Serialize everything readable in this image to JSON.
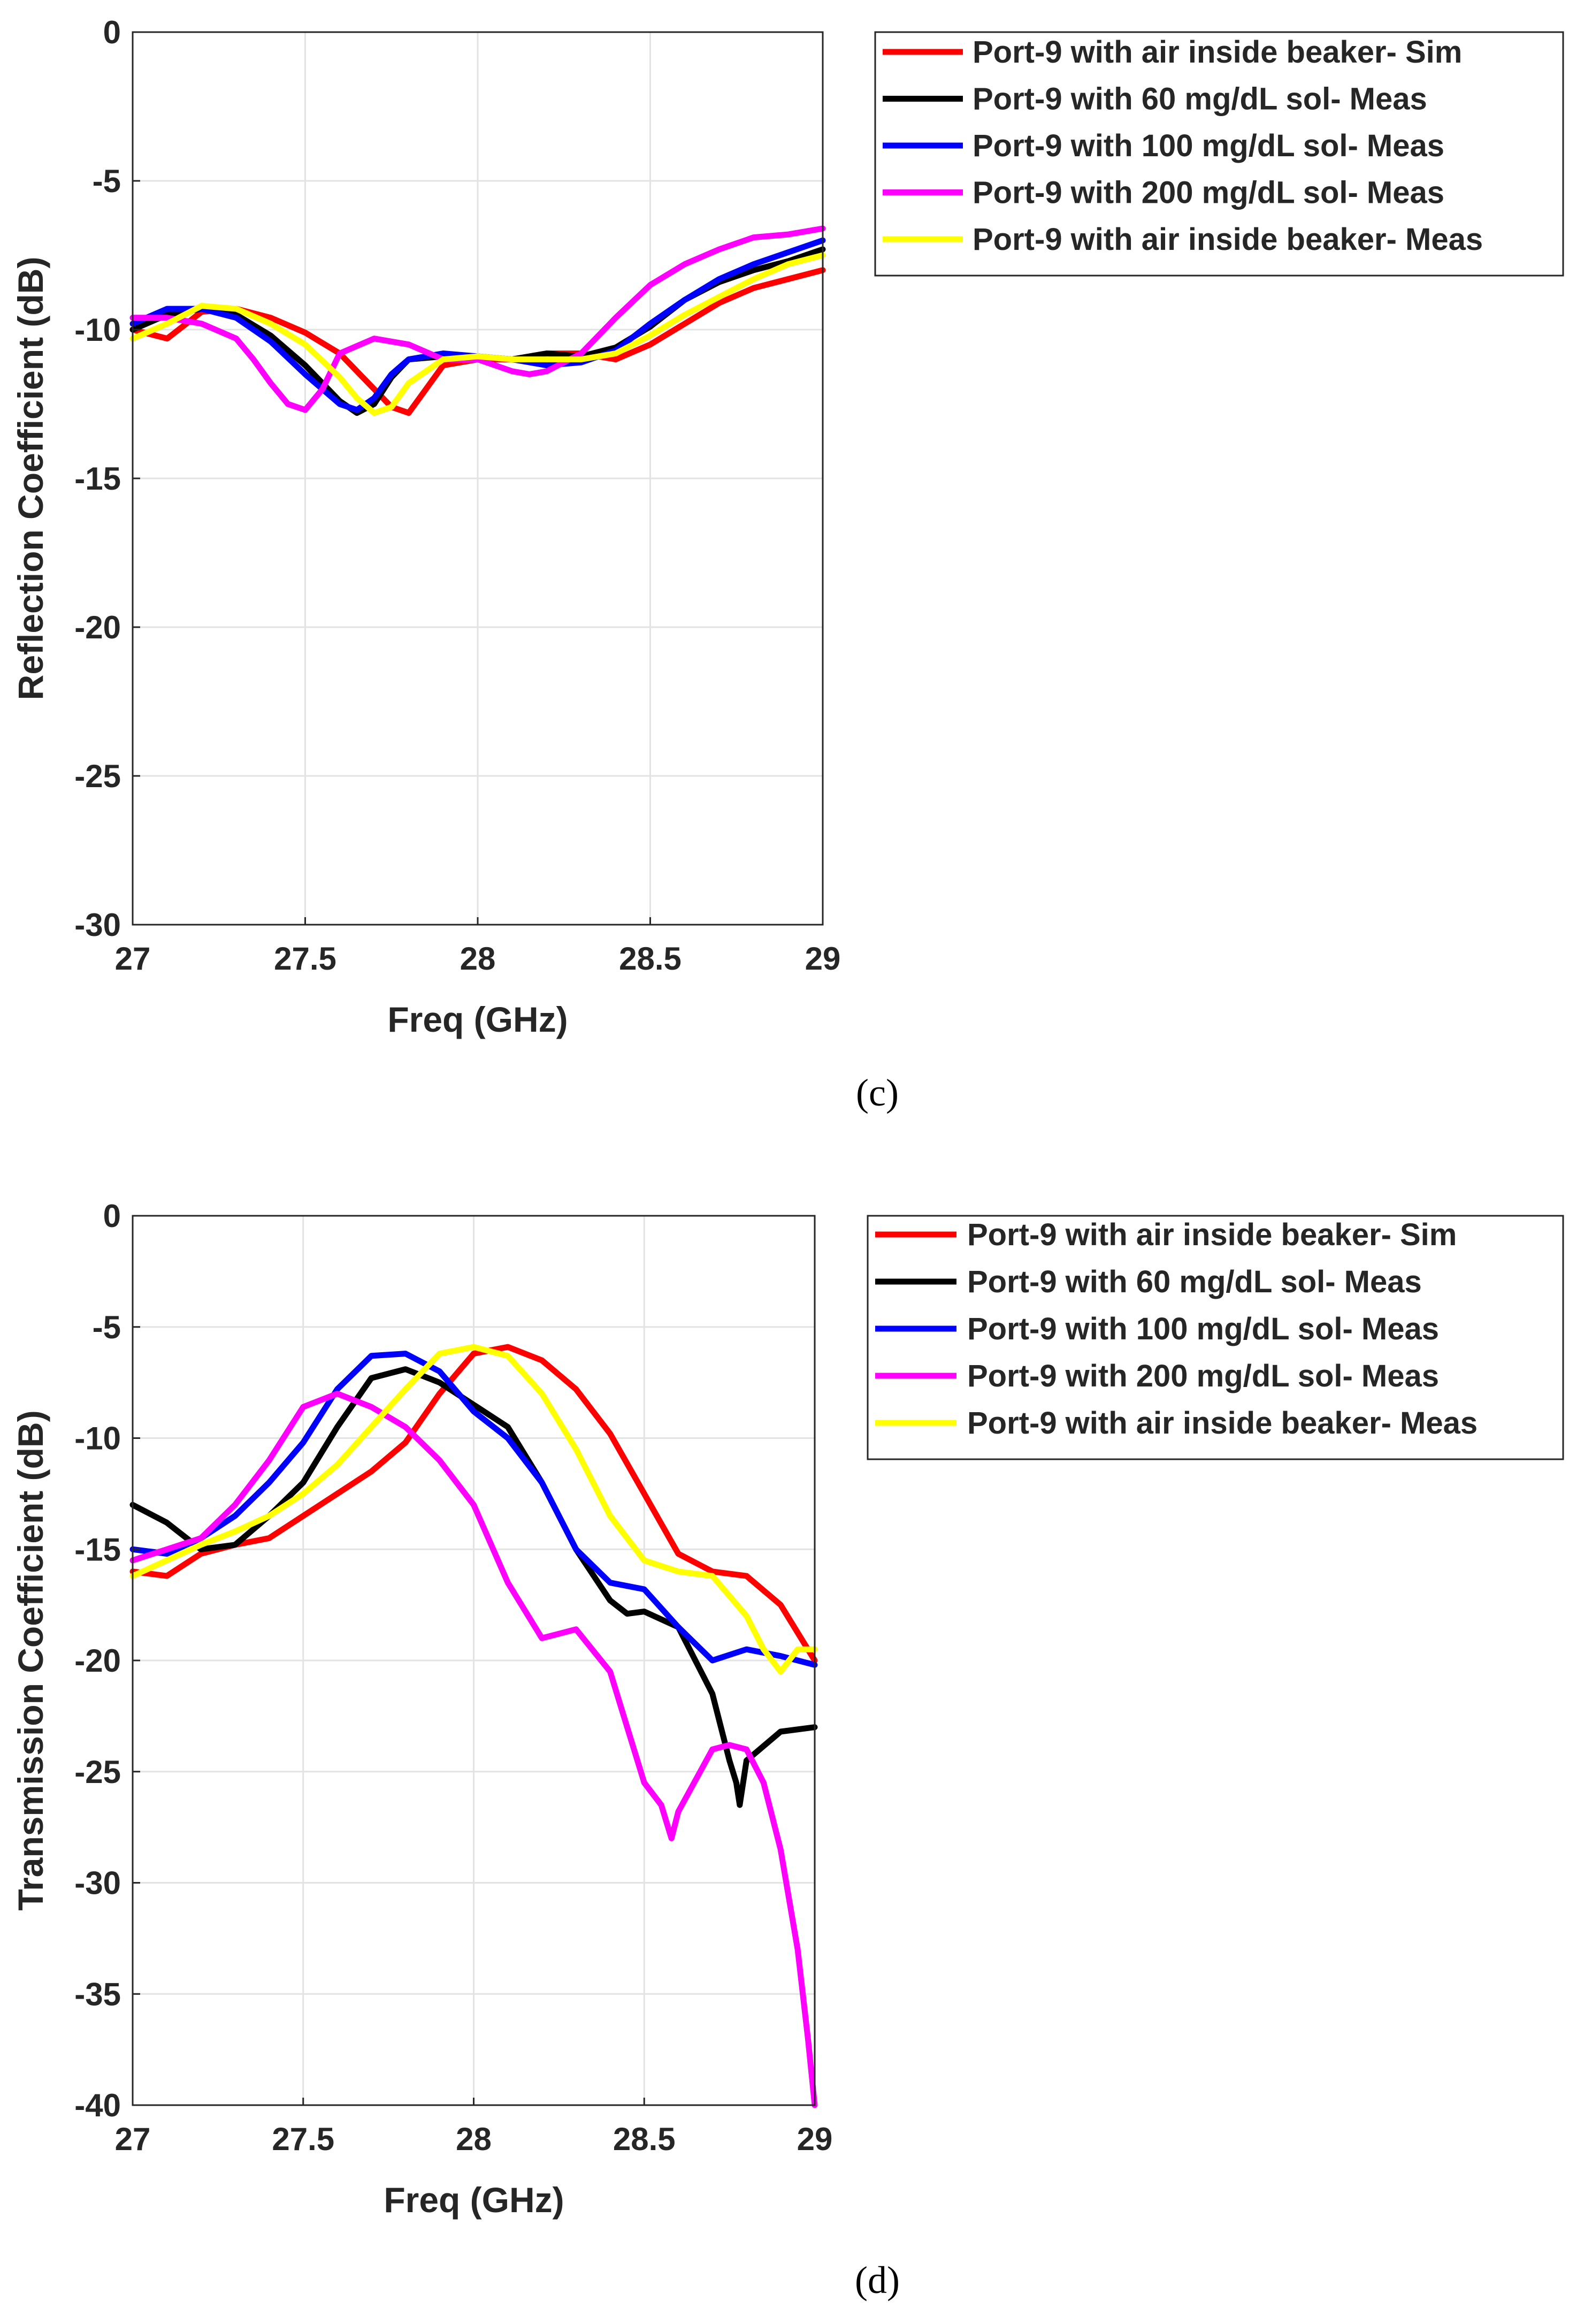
{
  "series_colors": {
    "sim_air": "#ff0000",
    "meas_60": "#000000",
    "meas_100": "#0000ff",
    "meas_200": "#ff00ff",
    "meas_air": "#ffff00"
  },
  "chart_data": [
    {
      "type": "line",
      "panel_label": "(c)",
      "title": "",
      "xlabel": "Freq (GHz)",
      "ylabel": "Reflection Coefficient (dB)",
      "xlim": [
        27,
        29
      ],
      "ylim": [
        -30,
        0
      ],
      "xticks": [
        27,
        27.5,
        28,
        28.5,
        29
      ],
      "xtick_labels": [
        "27",
        "27.5",
        "28",
        "28.5",
        "29"
      ],
      "yticks": [
        0,
        -5,
        -10,
        -15,
        -20,
        -25,
        -30
      ],
      "ytick_labels": [
        "0",
        "-5",
        "-10",
        "-15",
        "-20",
        "-25",
        "-30"
      ],
      "grid": true,
      "legend_position": "outside-top-right",
      "series": [
        {
          "key": "sim_air",
          "name": "Port-9 with air inside beaker- Sim",
          "x": [
            27,
            27.1,
            27.2,
            27.3,
            27.4,
            27.5,
            27.6,
            27.7,
            27.75,
            27.8,
            27.85,
            27.9,
            28,
            28.1,
            28.2,
            28.3,
            28.4,
            28.5,
            28.6,
            28.7,
            28.8,
            28.9,
            29
          ],
          "y": [
            -10.0,
            -10.3,
            -9.4,
            -9.3,
            -9.6,
            -10.1,
            -10.8,
            -12.0,
            -12.6,
            -12.8,
            -12.0,
            -11.2,
            -11.0,
            -11.0,
            -10.8,
            -10.8,
            -11.0,
            -10.5,
            -9.8,
            -9.1,
            -8.6,
            -8.3,
            -8.0
          ]
        },
        {
          "key": "meas_60",
          "name": "Port-9 with 60 mg/dL sol- Meas",
          "x": [
            27,
            27.1,
            27.2,
            27.3,
            27.4,
            27.5,
            27.6,
            27.65,
            27.7,
            27.75,
            27.8,
            27.9,
            28,
            28.1,
            28.2,
            28.3,
            28.4,
            28.5,
            28.6,
            28.7,
            28.8,
            28.9,
            29
          ],
          "y": [
            -10.0,
            -9.5,
            -9.3,
            -9.5,
            -10.2,
            -11.2,
            -12.4,
            -12.8,
            -12.5,
            -11.6,
            -11.0,
            -10.9,
            -10.9,
            -11.0,
            -10.8,
            -10.9,
            -10.6,
            -9.9,
            -9.0,
            -8.4,
            -8.0,
            -7.7,
            -7.3
          ]
        },
        {
          "key": "meas_100",
          "name": "Port-9 with 100 mg/dL sol- Meas",
          "x": [
            27,
            27.1,
            27.2,
            27.3,
            27.4,
            27.5,
            27.6,
            27.65,
            27.7,
            27.75,
            27.8,
            27.9,
            28,
            28.1,
            28.2,
            28.3,
            28.4,
            28.5,
            28.6,
            28.7,
            28.8,
            28.9,
            29
          ],
          "y": [
            -9.8,
            -9.3,
            -9.3,
            -9.6,
            -10.4,
            -11.5,
            -12.5,
            -12.7,
            -12.3,
            -11.5,
            -11.0,
            -10.8,
            -10.9,
            -11.0,
            -11.2,
            -11.1,
            -10.7,
            -9.8,
            -9.0,
            -8.3,
            -7.8,
            -7.4,
            -7.0
          ]
        },
        {
          "key": "meas_200",
          "name": "Port-9 with 200 mg/dL sol- Meas",
          "x": [
            27,
            27.1,
            27.2,
            27.3,
            27.35,
            27.4,
            27.45,
            27.5,
            27.55,
            27.6,
            27.7,
            27.8,
            27.9,
            28,
            28.1,
            28.15,
            28.2,
            28.3,
            28.4,
            28.5,
            28.6,
            28.7,
            28.8,
            28.9,
            29
          ],
          "y": [
            -9.6,
            -9.6,
            -9.8,
            -10.3,
            -11.0,
            -11.8,
            -12.5,
            -12.7,
            -12.0,
            -10.8,
            -10.3,
            -10.5,
            -11.0,
            -11.0,
            -11.4,
            -11.5,
            -11.4,
            -10.8,
            -9.6,
            -8.5,
            -7.8,
            -7.3,
            -6.9,
            -6.8,
            -6.6
          ]
        },
        {
          "key": "meas_air",
          "name": "Port-9 with air inside beaker- Meas",
          "x": [
            27,
            27.1,
            27.2,
            27.3,
            27.4,
            27.5,
            27.6,
            27.65,
            27.7,
            27.75,
            27.8,
            27.9,
            28,
            28.1,
            28.2,
            28.3,
            28.4,
            28.5,
            28.6,
            28.7,
            28.8,
            28.9,
            29
          ],
          "y": [
            -10.3,
            -9.8,
            -9.2,
            -9.3,
            -9.8,
            -10.5,
            -11.6,
            -12.3,
            -12.8,
            -12.6,
            -11.8,
            -11.0,
            -10.9,
            -11.0,
            -11.0,
            -11.0,
            -10.8,
            -10.2,
            -9.5,
            -8.9,
            -8.3,
            -7.8,
            -7.5
          ]
        }
      ]
    },
    {
      "type": "line",
      "panel_label": "(d)",
      "title": "",
      "xlabel": "Freq (GHz)",
      "ylabel": "Transmission Coefficient (dB)",
      "xlim": [
        27,
        29
      ],
      "ylim": [
        -40,
        0
      ],
      "xticks": [
        27,
        27.5,
        28,
        28.5,
        29
      ],
      "xtick_labels": [
        "27",
        "27.5",
        "28",
        "28.5",
        "29"
      ],
      "yticks": [
        0,
        -5,
        -10,
        -15,
        -20,
        -25,
        -30,
        -35,
        -40
      ],
      "ytick_labels": [
        "0",
        "-5",
        "-10",
        "-15",
        "-20",
        "-25",
        "-30",
        "-35",
        "-40"
      ],
      "grid": true,
      "legend_position": "outside-top-right",
      "series": [
        {
          "key": "sim_air",
          "name": "Port-9 with air inside beaker- Sim",
          "x": [
            27,
            27.1,
            27.2,
            27.3,
            27.4,
            27.5,
            27.6,
            27.7,
            27.8,
            27.9,
            28,
            28.1,
            28.2,
            28.3,
            28.4,
            28.5,
            28.6,
            28.7,
            28.8,
            28.9,
            29
          ],
          "y": [
            -16.0,
            -16.2,
            -15.2,
            -14.8,
            -14.5,
            -13.5,
            -12.5,
            -11.5,
            -10.2,
            -8.0,
            -6.2,
            -5.9,
            -6.5,
            -7.8,
            -9.8,
            -12.5,
            -15.2,
            -16.0,
            -16.2,
            -17.5,
            -20.0
          ]
        },
        {
          "key": "meas_60",
          "name": "Port-9 with 60 mg/dL sol- Meas",
          "x": [
            27,
            27.1,
            27.2,
            27.3,
            27.4,
            27.5,
            27.6,
            27.7,
            27.8,
            27.9,
            28,
            28.1,
            28.2,
            28.3,
            28.4,
            28.45,
            28.5,
            28.6,
            28.7,
            28.75,
            28.77,
            28.78,
            28.8,
            28.9,
            29
          ],
          "y": [
            -13.0,
            -13.8,
            -15.0,
            -14.8,
            -13.5,
            -12.0,
            -9.5,
            -7.3,
            -6.9,
            -7.5,
            -8.5,
            -9.5,
            -12.0,
            -15.0,
            -17.3,
            -17.9,
            -17.8,
            -18.5,
            -21.5,
            -24.5,
            -25.5,
            -26.5,
            -24.5,
            -23.2,
            -23.0
          ]
        },
        {
          "key": "meas_100",
          "name": "Port-9 with 100 mg/dL sol- Meas",
          "x": [
            27,
            27.1,
            27.2,
            27.3,
            27.4,
            27.5,
            27.6,
            27.7,
            27.8,
            27.9,
            28,
            28.1,
            28.2,
            28.3,
            28.4,
            28.5,
            28.6,
            28.7,
            28.8,
            28.9,
            29
          ],
          "y": [
            -15.0,
            -15.2,
            -14.5,
            -13.5,
            -12.0,
            -10.2,
            -7.8,
            -6.3,
            -6.2,
            -7.0,
            -8.8,
            -10.0,
            -12.0,
            -15.0,
            -16.5,
            -16.8,
            -18.5,
            -20.0,
            -19.5,
            -19.8,
            -20.2
          ]
        },
        {
          "key": "meas_200",
          "name": "Port-9 with 200 mg/dL sol- Meas",
          "x": [
            27,
            27.1,
            27.2,
            27.3,
            27.4,
            27.5,
            27.6,
            27.7,
            27.8,
            27.9,
            28,
            28.1,
            28.2,
            28.3,
            28.4,
            28.45,
            28.5,
            28.55,
            28.58,
            28.6,
            28.7,
            28.75,
            28.8,
            28.85,
            28.9,
            28.95,
            28.98,
            29
          ],
          "y": [
            -15.5,
            -15.0,
            -14.5,
            -13.0,
            -11.0,
            -8.6,
            -8.0,
            -8.6,
            -9.5,
            -11.0,
            -13.0,
            -16.5,
            -19.0,
            -18.6,
            -20.5,
            -23.0,
            -25.5,
            -26.5,
            -28.0,
            -26.8,
            -24.0,
            -23.8,
            -24.0,
            -25.5,
            -28.5,
            -33.0,
            -37.0,
            -40.0
          ]
        },
        {
          "key": "meas_air",
          "name": "Port-9 with air inside beaker- Meas",
          "x": [
            27,
            27.1,
            27.2,
            27.3,
            27.4,
            27.5,
            27.6,
            27.7,
            27.8,
            27.9,
            28,
            28.1,
            28.2,
            28.3,
            28.4,
            28.5,
            28.6,
            28.7,
            28.8,
            28.85,
            28.9,
            28.95,
            29
          ],
          "y": [
            -16.2,
            -15.5,
            -14.8,
            -14.2,
            -13.5,
            -12.5,
            -11.2,
            -9.5,
            -7.8,
            -6.2,
            -5.9,
            -6.3,
            -8.0,
            -10.5,
            -13.5,
            -15.5,
            -16.0,
            -16.2,
            -18.0,
            -19.5,
            -20.5,
            -19.5,
            -19.5
          ]
        }
      ]
    }
  ]
}
